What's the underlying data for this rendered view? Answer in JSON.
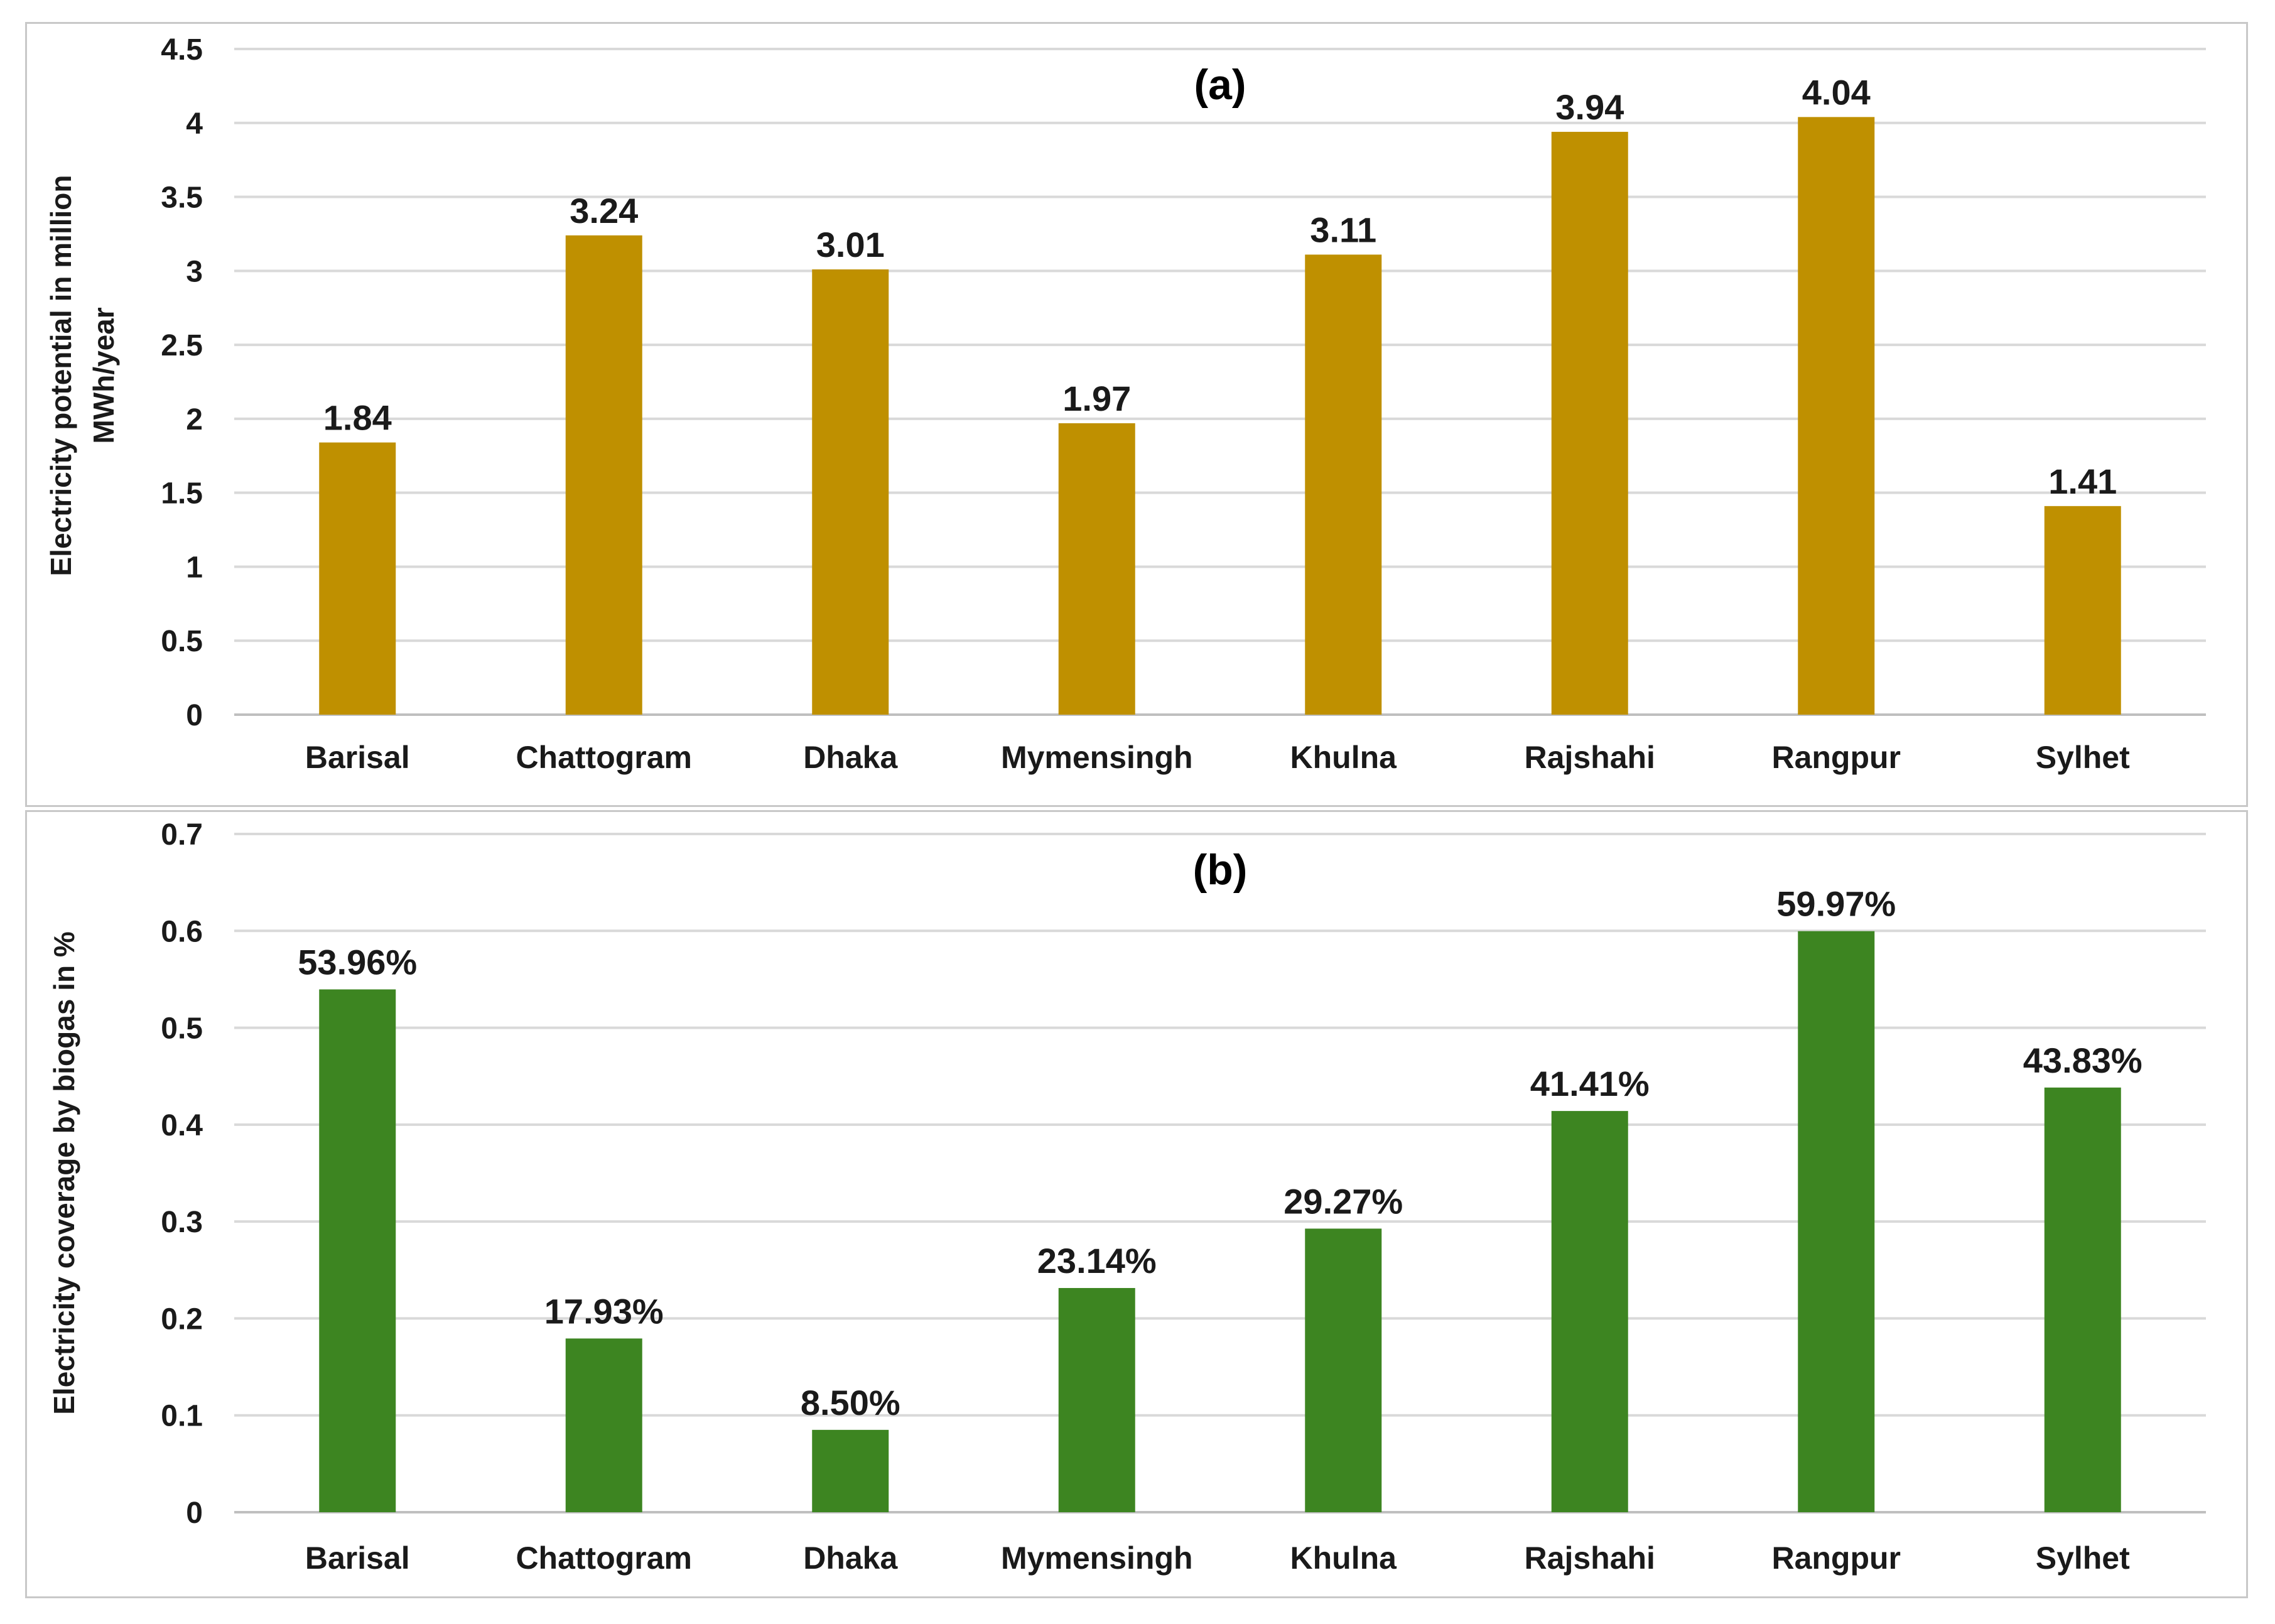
{
  "chart_data": [
    {
      "type": "bar",
      "title": "(a)",
      "categories": [
        "Barisal",
        "Chattogram",
        "Dhaka",
        "Mymensingh",
        "Khulna",
        "Rajshahi",
        "Rangpur",
        "Sylhet"
      ],
      "values": [
        1.84,
        3.24,
        3.01,
        1.97,
        3.11,
        3.94,
        4.04,
        1.41
      ],
      "data_labels": [
        "1.84",
        "3.24",
        "3.01",
        "1.97",
        "3.11",
        "3.94",
        "4.04",
        "1.41"
      ],
      "xlabel": "",
      "ylabel_lines": [
        "Electricity potential in million",
        "MWh/year"
      ],
      "ylim": [
        0,
        4.5
      ],
      "yticks": [
        "0",
        "0.5",
        "1",
        "1.5",
        "2",
        "2.5",
        "3",
        "3.5",
        "4",
        "4.5"
      ],
      "ytick_values": [
        0,
        0.5,
        1,
        1.5,
        2,
        2.5,
        3,
        3.5,
        4,
        4.5
      ],
      "color": "#bf9000",
      "grid": true
    },
    {
      "type": "bar",
      "title": "(b)",
      "categories": [
        "Barisal",
        "Chattogram",
        "Dhaka",
        "Mymensingh",
        "Khulna",
        "Rajshahi",
        "Rangpur",
        "Sylhet"
      ],
      "values": [
        0.5396,
        0.1793,
        0.085,
        0.2314,
        0.2927,
        0.4141,
        0.5997,
        0.4383
      ],
      "data_labels": [
        "53.96%",
        "17.93%",
        "8.50%",
        "23.14%",
        "29.27%",
        "41.41%",
        "59.97%",
        "43.83%"
      ],
      "xlabel": "",
      "ylabel_lines": [
        "Electricity coverage by biogas in %"
      ],
      "ylim": [
        0,
        0.7
      ],
      "yticks": [
        "0",
        "0.1",
        "0.2",
        "0.3",
        "0.4",
        "0.5",
        "0.6",
        "0.7"
      ],
      "ytick_values": [
        0,
        0.1,
        0.2,
        0.3,
        0.4,
        0.5,
        0.6,
        0.7
      ],
      "color": "#3d8521",
      "grid": true
    }
  ]
}
